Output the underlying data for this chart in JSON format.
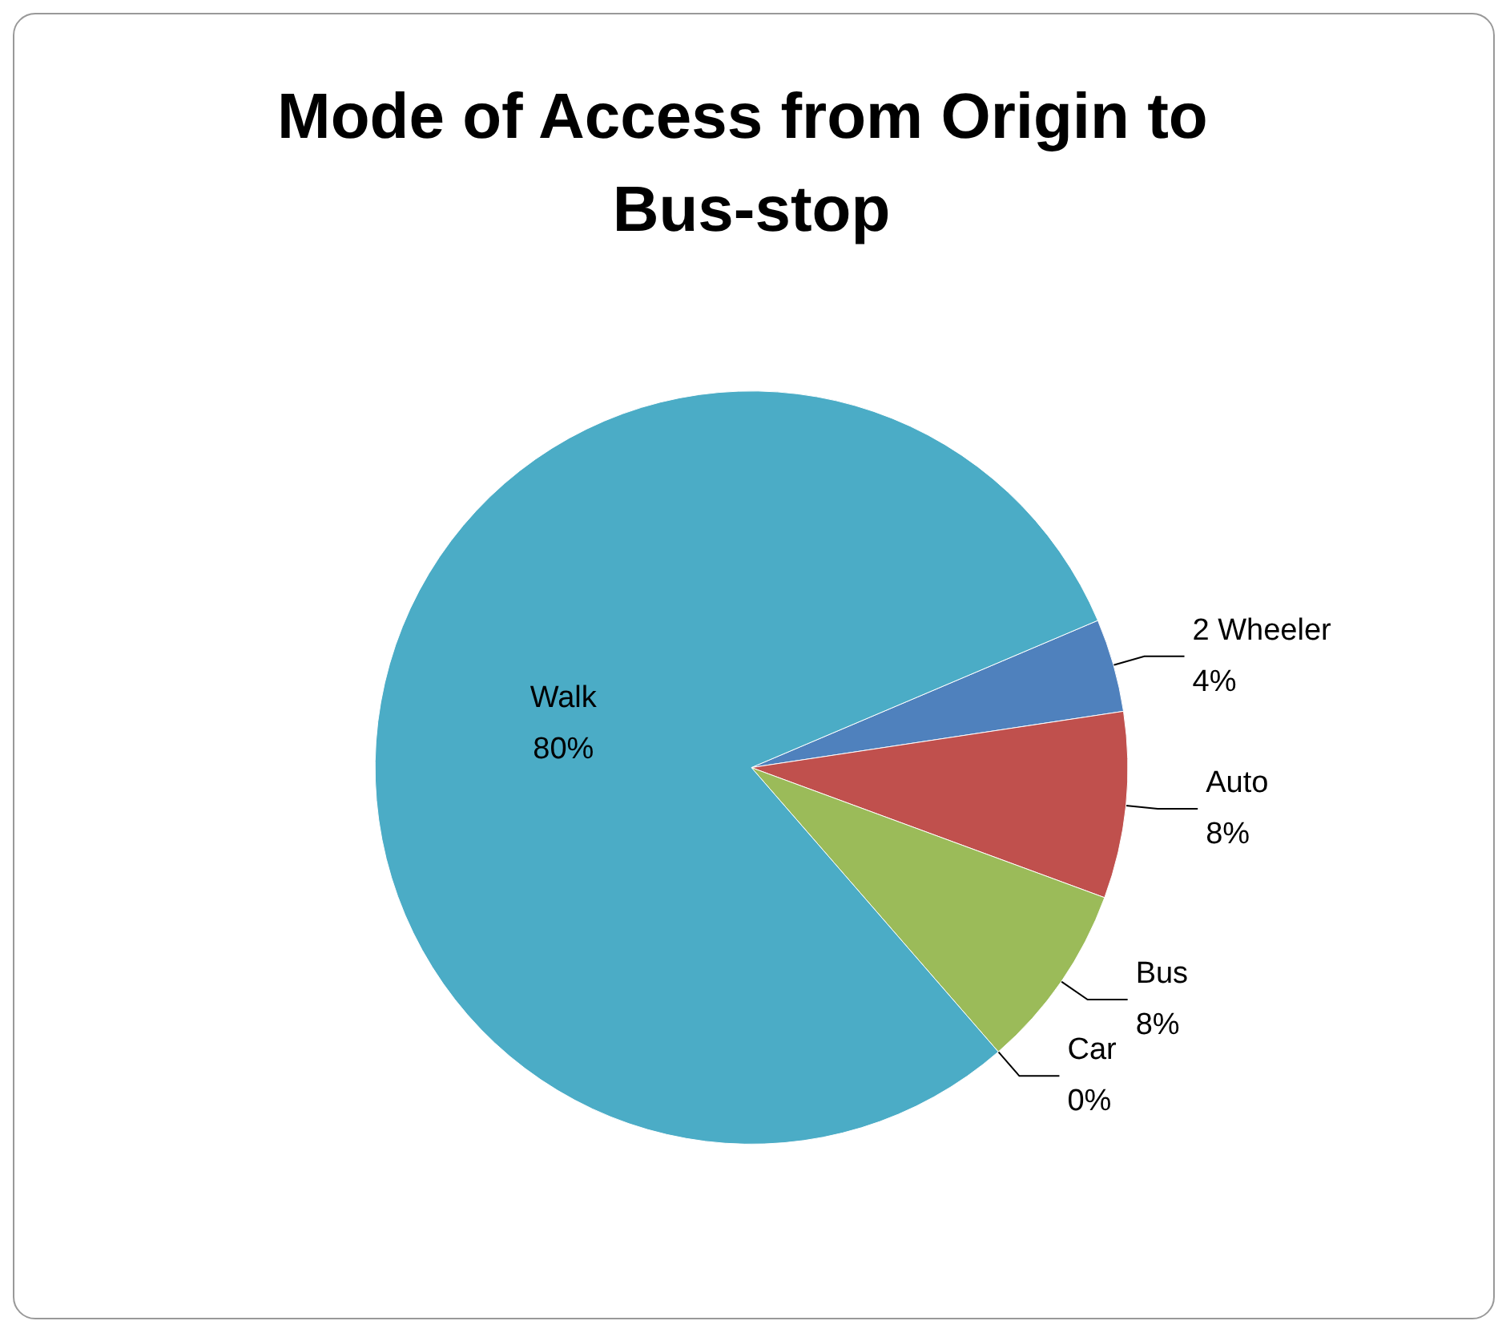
{
  "chart_data": {
    "type": "pie",
    "title": "Mode of Access from Origin to Bus-stop",
    "categories": [
      "2 Wheeler",
      "Auto",
      "Bus",
      "Car",
      "Walk"
    ],
    "values": [
      4,
      8,
      8,
      0,
      80
    ],
    "value_labels": [
      "4%",
      "8%",
      "8%",
      "0%",
      "80%"
    ],
    "colors": [
      "#4f81bd",
      "#c0504d",
      "#9bbb59",
      "#8064a2",
      "#4bacc6"
    ]
  }
}
